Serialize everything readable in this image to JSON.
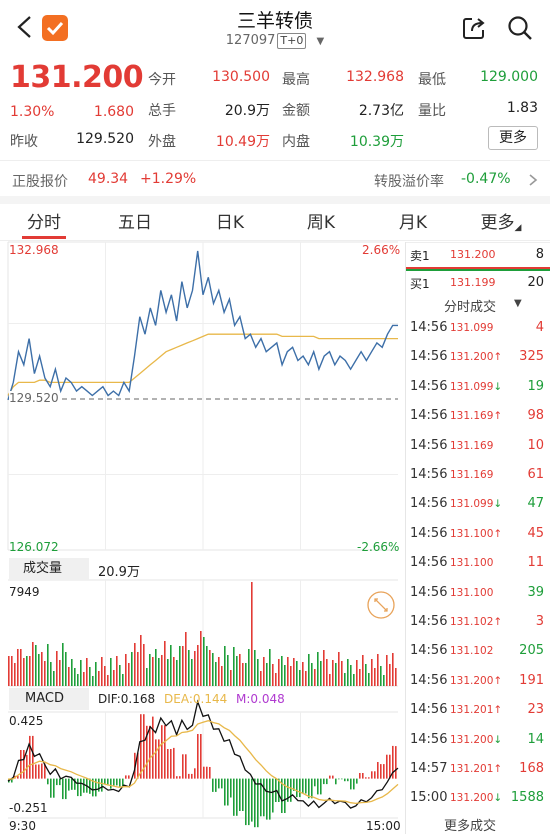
{
  "header": {
    "title": "三羊转债",
    "code": "127097",
    "tag": "T+0"
  },
  "quote": {
    "price": "131.200",
    "change_pct": "1.30%",
    "change": "1.680",
    "prev_close_label": "昨收",
    "prev_close": "129.520",
    "rows": [
      [
        {
          "label": "今开",
          "value": "130.500",
          "color": "red"
        },
        {
          "label": "最高",
          "value": "132.968",
          "color": "red"
        },
        {
          "label": "最低",
          "value": "129.000",
          "color": "green"
        }
      ],
      [
        {
          "label": "总手",
          "value": "20.9万",
          "color": "dark"
        },
        {
          "label": "金额",
          "value": "2.73亿",
          "color": "dark"
        },
        {
          "label": "量比",
          "value": "1.83",
          "color": "dark"
        }
      ],
      [
        {
          "label": "外盘",
          "value": "10.49万",
          "color": "red"
        },
        {
          "label": "内盘",
          "value": "10.39万",
          "color": "green"
        }
      ]
    ],
    "more_label": "更多"
  },
  "stock_info": {
    "label": "正股报价",
    "price": "49.34",
    "change": "+1.29%",
    "premium_label": "转股溢价率",
    "premium": "-0.47%"
  },
  "tabs": [
    "分时",
    "五日",
    "日K",
    "周K",
    "月K",
    "更多"
  ],
  "chart": {
    "high": "132.968",
    "low": "126.072",
    "base": "129.520",
    "pct_high": "2.66%",
    "pct_low": "-2.66%",
    "vol_label": "成交量",
    "vol_total": "20.9万",
    "vol_max": "7949",
    "macd_label": "MACD",
    "dif": "DIF:0.168",
    "dea": "DEA:0.144",
    "m": "M:0.048",
    "macd_max": "0.425",
    "macd_min": "-0.251",
    "time_start": "9:30",
    "time_end": "15:00"
  },
  "chart_data": {
    "type": "line",
    "title": "",
    "ylim": [
      126.072,
      132.968
    ],
    "x_range": [
      "9:30",
      "15:00"
    ],
    "series": [
      {
        "values": [
          129.5,
          129.9,
          130.6,
          130.3,
          130.9,
          130.1,
          130.5,
          130.0,
          129.8,
          130.2,
          129.7,
          130.0,
          129.9,
          129.7,
          129.8,
          129.7,
          129.6,
          129.7,
          129.8,
          129.6,
          129.7,
          129.6,
          129.9,
          129.7,
          130.5,
          131.4,
          131.0,
          131.6,
          131.2,
          132.0,
          131.5,
          131.9,
          131.3,
          132.2,
          131.6,
          132.0,
          132.9,
          131.9,
          132.3,
          131.7,
          132.0,
          131.5,
          131.8,
          131.2,
          131.4,
          130.9,
          131.0,
          130.7,
          130.9,
          130.6,
          130.7,
          130.8,
          130.3,
          130.6,
          130.7,
          130.4,
          130.5,
          130.3,
          130.6,
          130.2,
          130.5,
          130.6,
          130.3,
          130.5,
          130.4,
          130.2,
          130.4,
          130.6,
          130.4,
          130.6,
          130.8,
          130.7,
          131.0,
          131.2,
          131.2
        ]
      },
      {
        "values": [
          129.6,
          129.8,
          129.9,
          129.9,
          129.9,
          129.9,
          129.95,
          129.95,
          129.9,
          129.9,
          129.9,
          129.9,
          129.9,
          129.9,
          129.9,
          129.9,
          129.9,
          129.9,
          129.9,
          129.9,
          129.9,
          129.9,
          129.9,
          129.9,
          130.0,
          130.1,
          130.2,
          130.3,
          130.4,
          130.5,
          130.6,
          130.65,
          130.7,
          130.75,
          130.8,
          130.85,
          130.9,
          130.95,
          131.0,
          131.0,
          131.0,
          131.0,
          131.0,
          131.0,
          131.0,
          131.0,
          131.0,
          131.0,
          131.0,
          131.0,
          131.0,
          131.0,
          130.95,
          130.95,
          130.95,
          130.95,
          130.95,
          130.95,
          130.95,
          130.9,
          130.9,
          130.9,
          130.9,
          130.9,
          130.9,
          130.9,
          130.9,
          130.9,
          130.9,
          130.9,
          130.9,
          130.9,
          130.9,
          130.9,
          130.9
        ]
      }
    ]
  },
  "orderbook": {
    "sell_label": "卖1",
    "sell_price": "131.200",
    "sell_vol": "8",
    "buy_label": "买1",
    "buy_price": "131.199",
    "buy_vol": "20",
    "trades_title": "分时成交",
    "more_trades": "更多成交"
  },
  "trades": [
    {
      "time": "14:56",
      "price": "131.099",
      "arrow": "",
      "vol": "4",
      "color": "red"
    },
    {
      "time": "14:56",
      "price": "131.200",
      "arrow": "↑",
      "vol": "325",
      "color": "red"
    },
    {
      "time": "14:56",
      "price": "131.099",
      "arrow": "↓",
      "vol": "19",
      "color": "green"
    },
    {
      "time": "14:56",
      "price": "131.169",
      "arrow": "↑",
      "vol": "98",
      "color": "red"
    },
    {
      "time": "14:56",
      "price": "131.169",
      "arrow": "",
      "vol": "10",
      "color": "red"
    },
    {
      "time": "14:56",
      "price": "131.169",
      "arrow": "",
      "vol": "61",
      "color": "red"
    },
    {
      "time": "14:56",
      "price": "131.099",
      "arrow": "↓",
      "vol": "47",
      "color": "green"
    },
    {
      "time": "14:56",
      "price": "131.100",
      "arrow": "↑",
      "vol": "45",
      "color": "red"
    },
    {
      "time": "14:56",
      "price": "131.100",
      "arrow": "",
      "vol": "11",
      "color": "red"
    },
    {
      "time": "14:56",
      "price": "131.100",
      "arrow": "",
      "vol": "39",
      "color": "green"
    },
    {
      "time": "14:56",
      "price": "131.102",
      "arrow": "↑",
      "vol": "3",
      "color": "red"
    },
    {
      "time": "14:56",
      "price": "131.102",
      "arrow": "",
      "vol": "205",
      "color": "green"
    },
    {
      "time": "14:56",
      "price": "131.200",
      "arrow": "↑",
      "vol": "191",
      "color": "red"
    },
    {
      "time": "14:56",
      "price": "131.201",
      "arrow": "↑",
      "vol": "23",
      "color": "red"
    },
    {
      "time": "14:56",
      "price": "131.200",
      "arrow": "↓",
      "vol": "14",
      "color": "green"
    },
    {
      "time": "14:57",
      "price": "131.201",
      "arrow": "↑",
      "vol": "168",
      "color": "red"
    },
    {
      "time": "15:00",
      "price": "131.200",
      "arrow": "↓",
      "vol": "1588",
      "color": "green"
    }
  ],
  "colors": {
    "up": "#e23b35",
    "down": "#1e9e3a",
    "avg": "#e8b84a",
    "line": "#3d6fa8"
  }
}
